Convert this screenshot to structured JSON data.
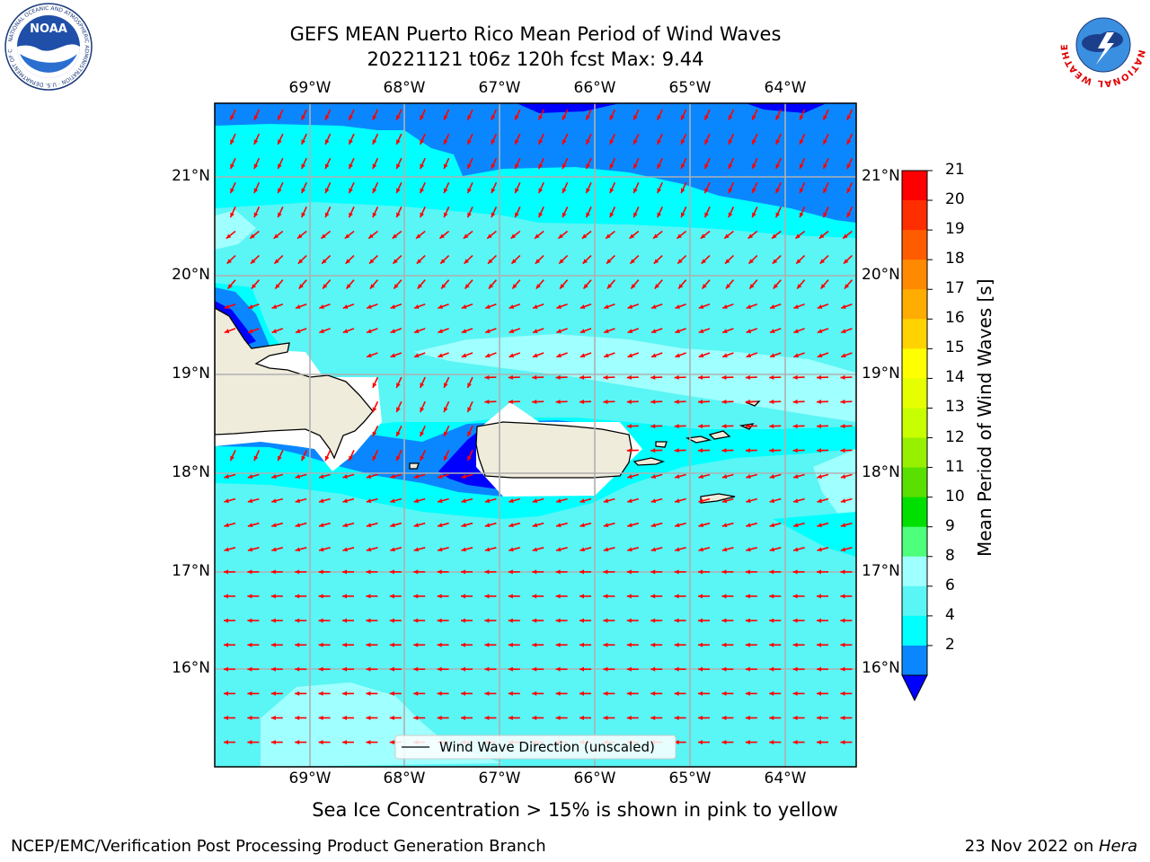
{
  "title": {
    "line1": "GEFS MEAN Puerto Rico Mean Period of Wind Waves",
    "line2": "20221121 t06z 120h fcst   Max: 9.44"
  },
  "map": {
    "lon_ticks": [
      "69°W",
      "68°W",
      "67°W",
      "66°W",
      "65°W",
      "64°W"
    ],
    "lat_ticks": [
      "21°N",
      "20°N",
      "19°N",
      "18°N",
      "17°N",
      "16°N"
    ],
    "legend_label": "Wind Wave Direction (unscaled)",
    "arrow_color": "#ff0000",
    "coast_color": "#000000",
    "land_color": "#efecdc"
  },
  "colorbar": {
    "label": "Mean Period of Wind Waves [s]",
    "ticks": [
      "21",
      "20",
      "19",
      "18",
      "17",
      "16",
      "15",
      "14",
      "13",
      "12",
      "11",
      "10",
      "9",
      "8",
      "6",
      "4",
      "2"
    ],
    "colors": [
      "#ff0000",
      "#ff2e00",
      "#ff5c00",
      "#ff8a00",
      "#ffad00",
      "#ffd300",
      "#ffff00",
      "#e6ff00",
      "#c8ff00",
      "#96f000",
      "#5ae000",
      "#00e000",
      "#4dff7a",
      "#a0ffff",
      "#5af5f5",
      "#00ffff",
      "#0a87ff"
    ],
    "under_color": "#0000ff"
  },
  "palette": {
    "c_2_4": "#0a87ff",
    "c_4_6": "#00ffff",
    "c_6_8": "#5af5f5",
    "c_8_9": "#a0ffff",
    "deep": "#0000ff"
  },
  "footer": {
    "note": "Sea Ice Concentration > 15% is shown in pink to yellow",
    "left": "NCEP/EMC/Verification Post Processing Product Generation Branch",
    "right_date": "23 Nov 2022 on ",
    "right_host": "Hera"
  },
  "logos": {
    "noaa_text": "NOAA",
    "noaa_ring": "NATIONAL OCEANIC AND ATMOSPHERIC ADMINISTRATION · U.S. DEPARTMENT OF COMMERCE",
    "nws_ring": "NATIONAL WEATHER SERVICE"
  }
}
